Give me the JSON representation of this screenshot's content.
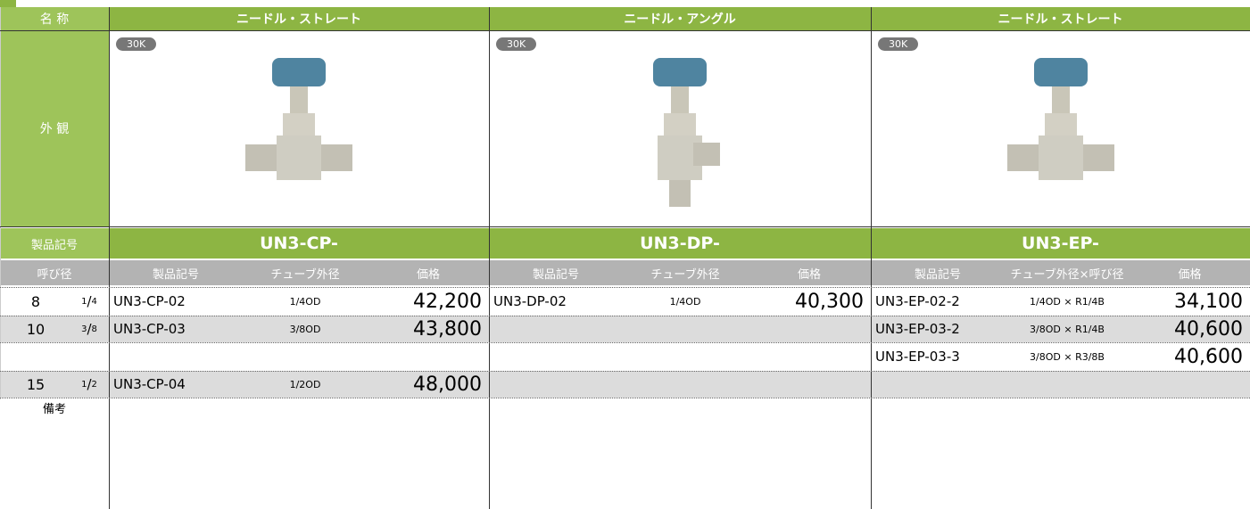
{
  "header": {
    "name_label": "名 称",
    "appearance_label": "外 観",
    "code_label": "製品記号",
    "size_label": "呼び径",
    "remarks_label": "備考"
  },
  "sizes": [
    {
      "mm": "8",
      "num": "1",
      "den": "4"
    },
    {
      "mm": "10",
      "num": "3",
      "den": "8"
    },
    null,
    {
      "mm": "15",
      "num": "1",
      "den": "2"
    }
  ],
  "products": [
    {
      "name": "ニードル・ストレート",
      "badge": "30K",
      "code": "UN3-CP-",
      "columns": [
        "製品記号",
        "チューブ外径",
        "価格"
      ],
      "rows": [
        {
          "code": "UN3-CP-02",
          "tube": "1/4OD",
          "price": "42,200"
        },
        {
          "code": "UN3-CP-03",
          "tube": "3/8OD",
          "price": "43,800"
        },
        null,
        {
          "code": "UN3-CP-04",
          "tube": "1/2OD",
          "price": "48,000"
        }
      ]
    },
    {
      "name": "ニードル・アングル",
      "badge": "30K",
      "code": "UN3-DP-",
      "columns": [
        "製品記号",
        "チューブ外径",
        "価格"
      ],
      "rows": [
        {
          "code": "UN3-DP-02",
          "tube": "1/4OD",
          "price": "40,300"
        },
        null,
        null,
        null
      ]
    },
    {
      "name": "ニードル・ストレート",
      "badge": "30K",
      "code": "UN3-EP-",
      "columns": [
        "製品記号",
        "チューブ外径×呼び径",
        "価格"
      ],
      "rows": [
        {
          "code": "UN3-EP-02-2",
          "tube": "1/4OD × R1/4B",
          "price": "34,100"
        },
        {
          "code": "UN3-EP-03-2",
          "tube": "3/8OD × R1/4B",
          "price": "40,600"
        },
        {
          "code": "UN3-EP-03-3",
          "tube": "3/8OD × R3/8B",
          "price": "40,600"
        },
        null
      ]
    }
  ]
}
